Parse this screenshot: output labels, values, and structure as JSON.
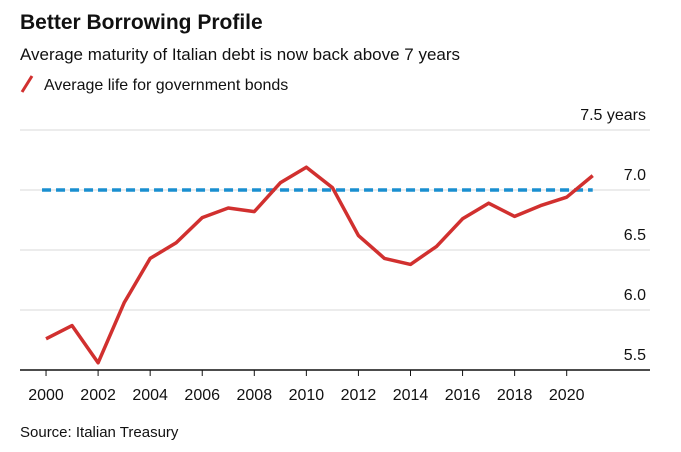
{
  "chart_data": {
    "type": "line",
    "title": "Better Borrowing Profile",
    "subtitle": "Average maturity of Italian debt is now back above 7 years",
    "source": "Source: Italian Treasury",
    "x": [
      2000,
      2001,
      2002,
      2003,
      2004,
      2005,
      2006,
      2007,
      2008,
      2009,
      2010,
      2011,
      2012,
      2013,
      2014,
      2015,
      2016,
      2017,
      2018,
      2019,
      2020,
      2021
    ],
    "series": [
      {
        "name": "Average life for government bonds",
        "color": "#d1302f",
        "values": [
          5.76,
          5.87,
          5.56,
          6.06,
          6.43,
          6.56,
          6.77,
          6.85,
          6.82,
          7.06,
          7.19,
          7.02,
          6.62,
          6.43,
          6.38,
          6.53,
          6.76,
          6.89,
          6.78,
          6.87,
          6.94,
          7.12
        ]
      }
    ],
    "reference_line": {
      "value": 7,
      "color": "#1a8fd0"
    },
    "xlim": [
      1999,
      2023.2
    ],
    "xticks": [
      2000,
      2002,
      2004,
      2006,
      2008,
      2010,
      2012,
      2014,
      2016,
      2018,
      2020
    ],
    "ylim": [
      5.5,
      7.5
    ],
    "yticks": [
      5.5,
      {
        "value": 6,
        "label": "6.0"
      },
      6.5,
      {
        "value": 7,
        "label": "7.0"
      },
      {
        "value": 7.5,
        "label": "7.5 years"
      }
    ],
    "grid": true
  }
}
